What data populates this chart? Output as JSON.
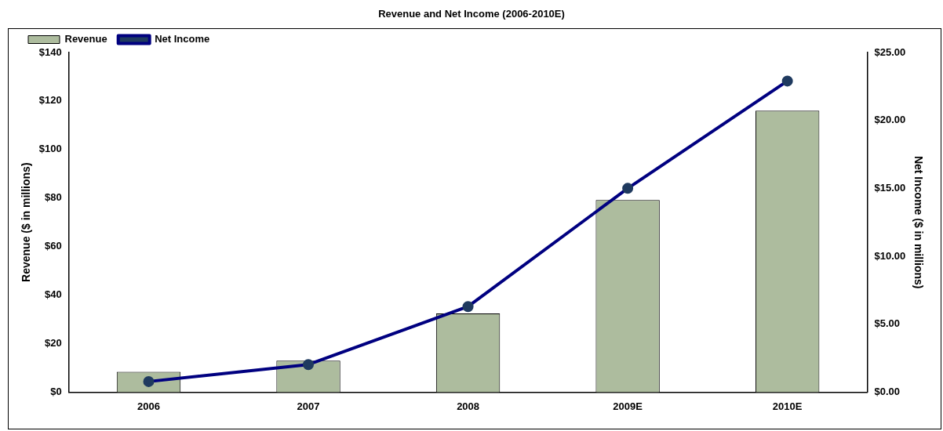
{
  "chart_data": {
    "type": "bar",
    "title": "Revenue and Net Income (2006-2010E)",
    "ylabel": "Revenue ($ in millions)",
    "y2label": "Net Income ($ in millions)",
    "categories": [
      "2006",
      "2007",
      "2008",
      "2009E",
      "2010E"
    ],
    "series": [
      {
        "name": "Revenue",
        "color": "#adbc9e",
        "values": [
          8.4,
          13,
          32.4,
          79.2,
          116
        ]
      },
      {
        "name": "Net Income",
        "type": "line",
        "axis": "y2",
        "color": "#000080",
        "values": [
          0.78,
          2.03,
          6.3,
          15,
          22.9
        ]
      }
    ],
    "ylim": [
      0,
      140
    ],
    "yticks": [
      {
        "value": 0,
        "label": "$0"
      },
      {
        "value": 20,
        "label": "$20"
      },
      {
        "value": 40,
        "label": "$40"
      },
      {
        "value": 60,
        "label": "$60"
      },
      {
        "value": 80,
        "label": "$80"
      },
      {
        "value": 100,
        "label": "$100"
      },
      {
        "value": 120,
        "label": "$120"
      },
      {
        "value": 140,
        "label": "$140"
      }
    ],
    "y2lim": [
      0,
      25
    ],
    "y2ticks": [
      {
        "value": 0,
        "label": "$0.00"
      },
      {
        "value": 5,
        "label": "$5.00"
      },
      {
        "value": 10,
        "label": "$10.00"
      },
      {
        "value": 15,
        "label": "$15.00"
      },
      {
        "value": 20,
        "label": "$20.00"
      },
      {
        "value": 25,
        "label": "$25.00"
      }
    ],
    "legend": "top left",
    "marker": "circle",
    "line_style": "solid",
    "grid": false
  }
}
